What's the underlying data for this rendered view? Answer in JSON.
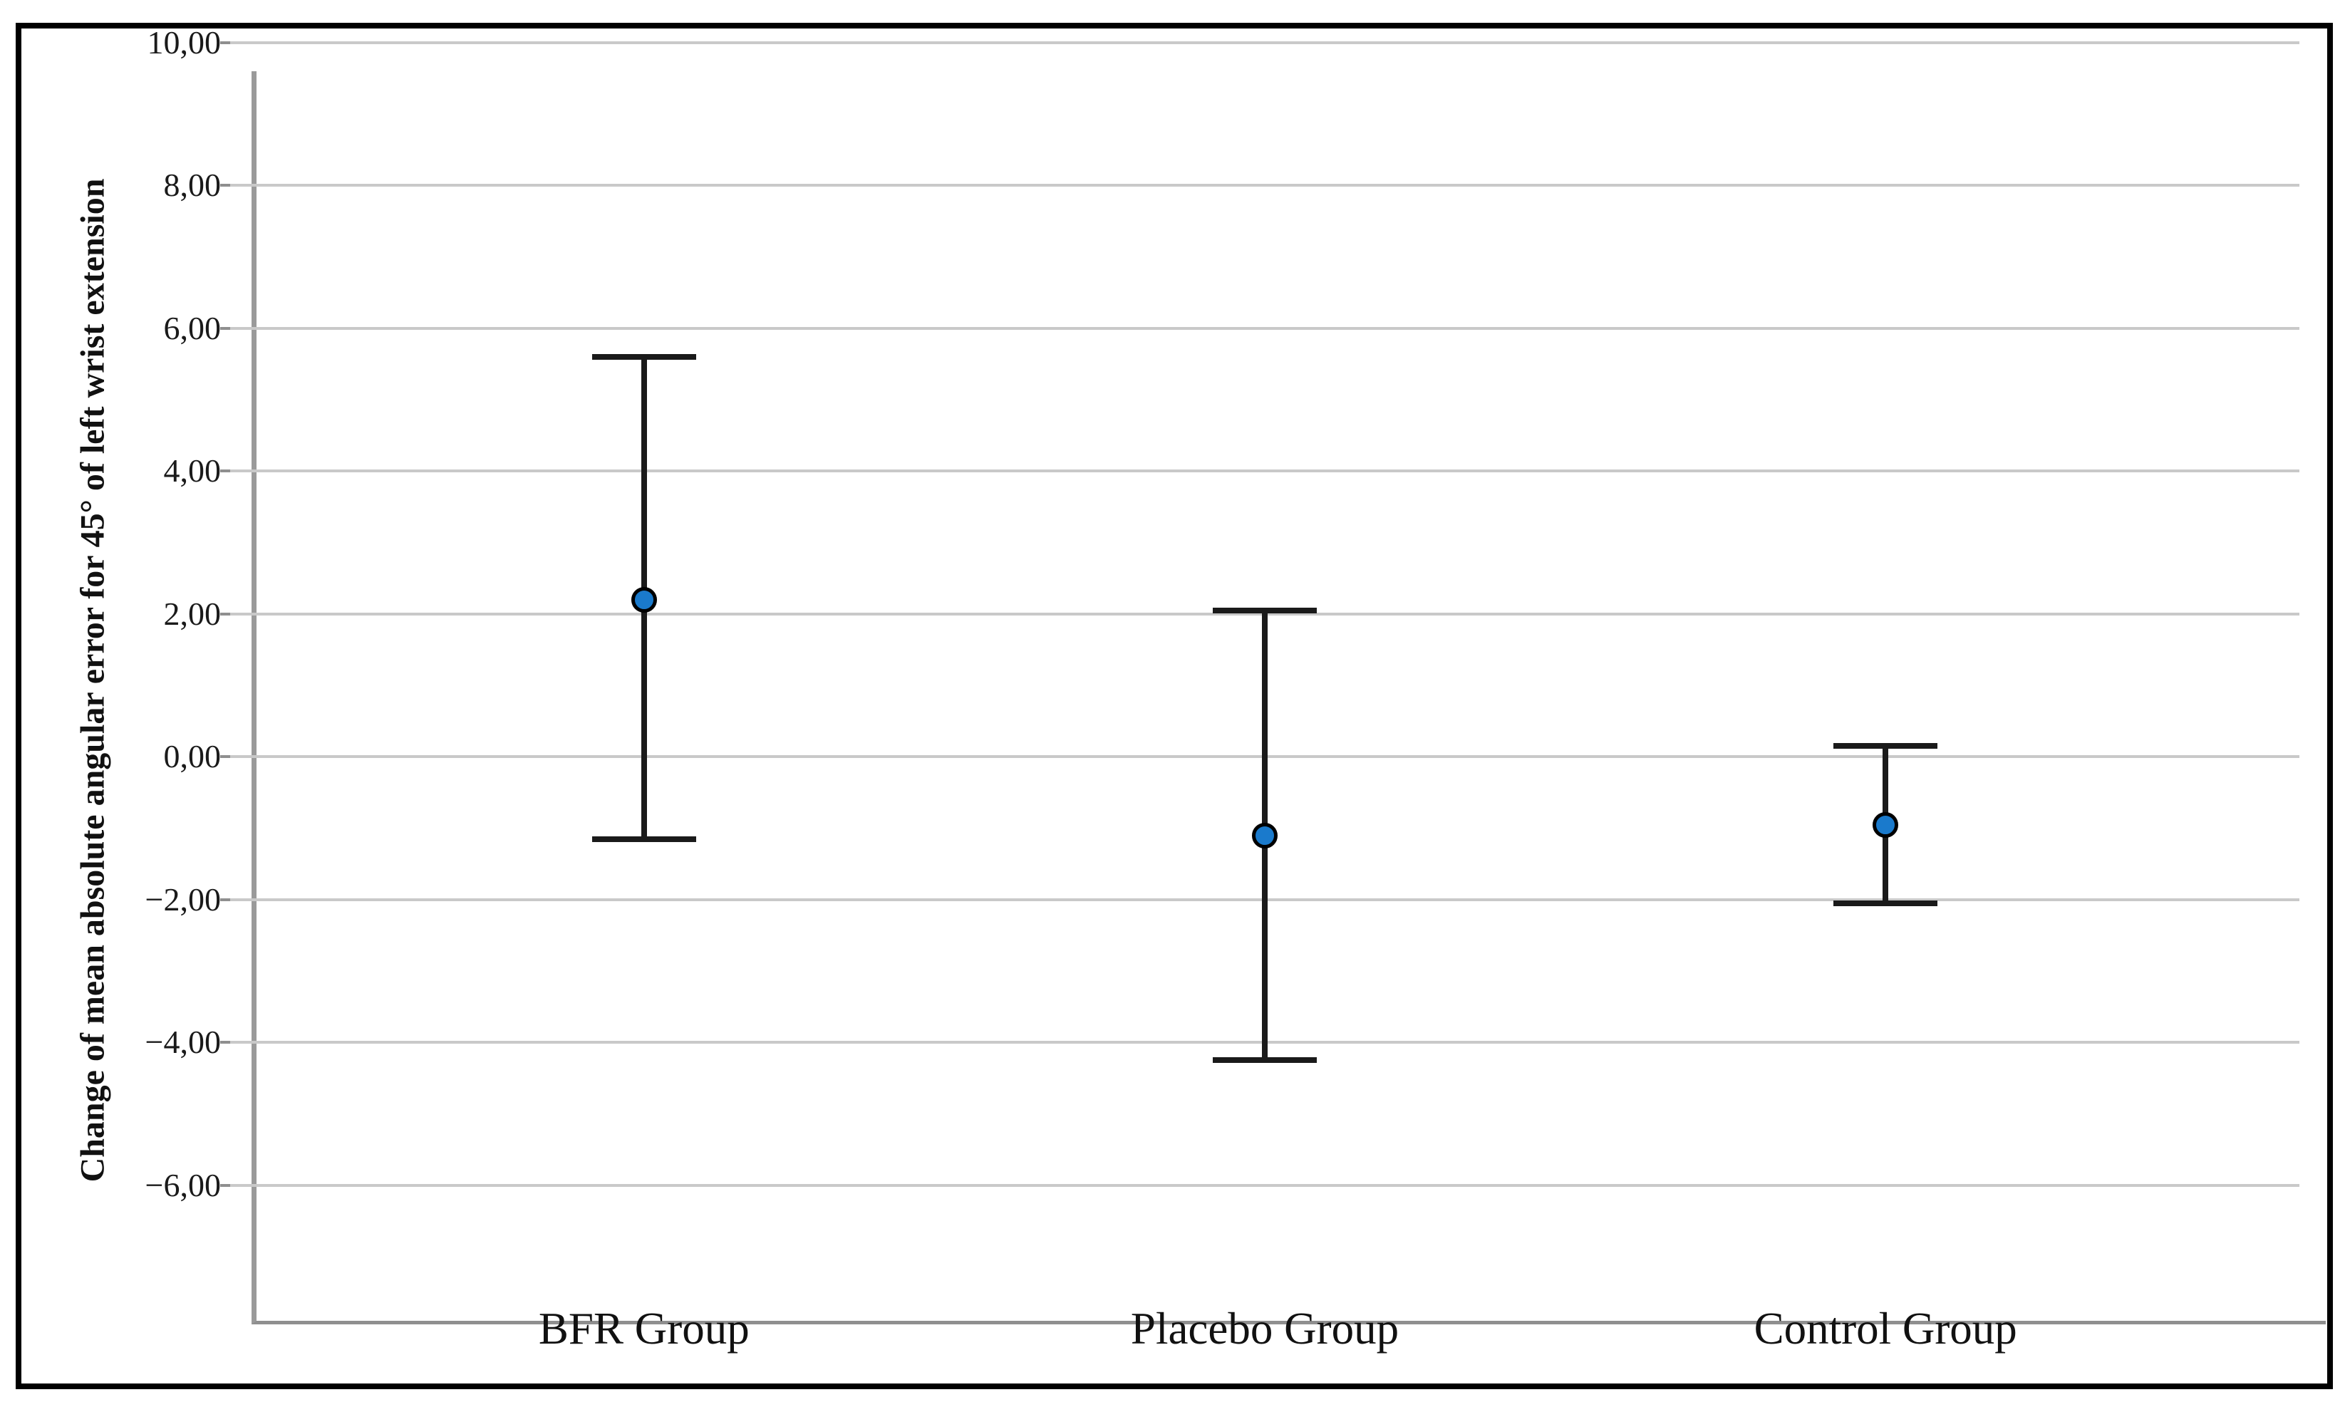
{
  "figure": {
    "background_color": "#ffffff",
    "outer_border_color": "#000000"
  },
  "chart_data": {
    "type": "scatter",
    "subtype": "mean-error-bars",
    "title": "",
    "xlabel": "",
    "ylabel": "Change of mean absolute angular error for 45° of left wrist extension",
    "categories": [
      "BFR Group",
      "Placebo Group",
      "Control Group"
    ],
    "series": [
      {
        "name": "Mean with error bars",
        "means": [
          2.2,
          -1.1,
          -0.95
        ],
        "ci_high": [
          5.6,
          2.05,
          0.15
        ],
        "ci_low": [
          -1.15,
          -4.25,
          -2.05
        ]
      }
    ],
    "y_axis": {
      "min": -7.5,
      "max": 10,
      "tick_values": [
        10,
        8,
        6,
        4,
        2,
        0,
        -2,
        -4,
        -6
      ],
      "tick_labels": [
        "10,00",
        "8,00",
        "6,00",
        "4,00",
        "2,00",
        "0,00",
        "−2,00",
        "−4,00",
        "−6,00"
      ],
      "decimal_separator": ","
    },
    "grid": true,
    "legend": false,
    "colors": {
      "marker_fill": "#1a7acc",
      "marker_outline": "#000000",
      "errorbar": "#1a1a1a",
      "gridline": "#c9c9c9",
      "axis_line": "#8f8f8f",
      "tick_text": "#1a1a1a"
    }
  }
}
